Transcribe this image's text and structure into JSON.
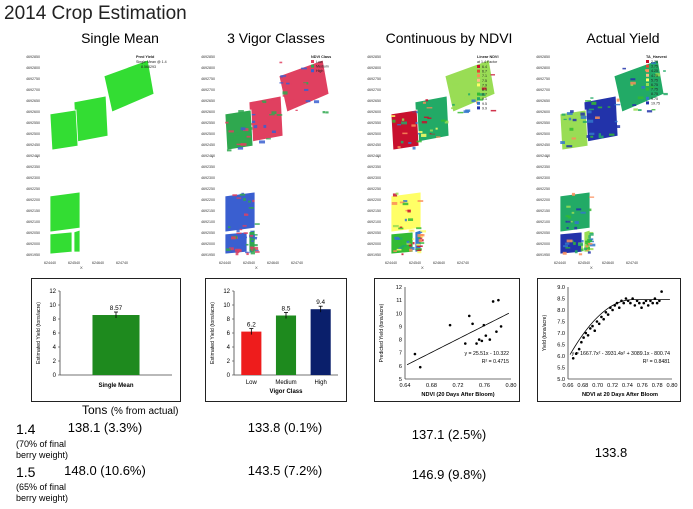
{
  "title": "2014 Crop Estimation",
  "columns": [
    {
      "header": "Single Mean"
    },
    {
      "header": "3 Vigor Classes"
    },
    {
      "header": "Continuous by NDVI"
    },
    {
      "header": "Actual Yield"
    }
  ],
  "maps": {
    "y_ticks": [
      "4692850",
      "4692800",
      "4692750",
      "4692700",
      "4692650",
      "4692600",
      "4692550",
      "4692500",
      "4692450",
      "4692400",
      "4692350",
      "4692300",
      "4692250",
      "4692200",
      "4692150",
      "4692100",
      "4692050",
      "4692000",
      "4691950"
    ],
    "x_ticks": [
      "624440",
      "624540",
      "624640",
      "624740"
    ],
    "x_label": "X",
    "y_label": "Y",
    "legends": [
      {
        "title": "Pred Yield",
        "subtitle": "Single Mean @ 1.4",
        "items": [
          {
            "label": "8.568293",
            "color": "#33dd33"
          }
        ]
      },
      {
        "title": "NDVI Class",
        "subtitle": "",
        "items": [
          {
            "label": "Low",
            "color": "#e04060"
          },
          {
            "label": "Medium",
            "color": "#2fa84f"
          },
          {
            "label": "High",
            "color": "#3a5fd0"
          }
        ]
      },
      {
        "title": "Linear NDVI",
        "subtitle": "at 1.4 Factor",
        "items": [
          {
            "label": "6.4",
            "color": "#c8102e"
          },
          {
            "label": "6.7",
            "color": "#e34a33"
          },
          {
            "label": "7.1",
            "color": "#fc8d59"
          },
          {
            "label": "7.5",
            "color": "#fdbb84"
          },
          {
            "label": "7.9",
            "color": "#ffff66"
          },
          {
            "label": "8.3",
            "color": "#99dd55"
          },
          {
            "label": "8.7",
            "color": "#33bb33"
          },
          {
            "label": "9.1",
            "color": "#22aa66"
          },
          {
            "label": "9.5",
            "color": "#3377cc"
          },
          {
            "label": "9.9",
            "color": "#2233aa"
          }
        ]
      },
      {
        "title": "TA_Harvest",
        "subtitle": "",
        "items": [
          {
            "label": "2.75",
            "color": "#c8102e"
          },
          {
            "label": "3.75",
            "color": "#e34a33"
          },
          {
            "label": "4.25",
            "color": "#fc8d59"
          },
          {
            "label": "4.75",
            "color": "#fdbb84"
          },
          {
            "label": "5.75",
            "color": "#ffff66"
          },
          {
            "label": "6.75",
            "color": "#99dd55"
          },
          {
            "label": "7.75",
            "color": "#33bb33"
          },
          {
            "label": "8.75",
            "color": "#22aa66"
          },
          {
            "label": "9.75",
            "color": "#3377cc"
          },
          {
            "label": "19.75",
            "color": "#2233aa"
          }
        ]
      }
    ]
  },
  "charts": [
    {
      "type": "bar",
      "categories": [
        "Single Mean"
      ],
      "values": [
        8.57
      ],
      "value_labels": [
        "8.57"
      ],
      "colors": [
        "#1e8a1e"
      ],
      "ylabel": "Estimated Yield (tons/acre)",
      "xlabel": "Single Mean",
      "yticks": [
        "0",
        "2",
        "4",
        "6",
        "8",
        "10",
        "12"
      ],
      "ylim": [
        0,
        12
      ]
    },
    {
      "type": "bar",
      "categories": [
        "Low",
        "Medium",
        "High"
      ],
      "values": [
        6.2,
        8.5,
        9.4
      ],
      "value_labels": [
        "6.2",
        "8.5",
        "9.4"
      ],
      "colors": [
        "#ee1c1c",
        "#1e8a1e",
        "#0a1f6b"
      ],
      "ylabel": "Estimated Yield (tons/acre)",
      "xlabel": "Vigor Class",
      "yticks": [
        "0",
        "2",
        "4",
        "6",
        "8",
        "10",
        "12"
      ],
      "ylim": [
        0,
        12
      ]
    },
    {
      "type": "scatter",
      "xlabel": "NDVI (20 Days After Bloom)",
      "ylabel": "Predicted Yield (tons/acre)",
      "xticks": [
        "0.64",
        "0.68",
        "0.72",
        "0.76",
        "0.80"
      ],
      "yticks": [
        "5",
        "6",
        "7",
        "8",
        "9",
        "10",
        "11",
        "12"
      ],
      "xlim": [
        0.64,
        0.8
      ],
      "ylim": [
        5,
        12
      ],
      "points": [
        [
          0.655,
          6.9
        ],
        [
          0.663,
          5.9
        ],
        [
          0.708,
          9.1
        ],
        [
          0.731,
          7.7
        ],
        [
          0.737,
          9.8
        ],
        [
          0.742,
          9.2
        ],
        [
          0.748,
          7.7
        ],
        [
          0.752,
          8.0
        ],
        [
          0.756,
          7.9
        ],
        [
          0.759,
          9.1
        ],
        [
          0.762,
          8.3
        ],
        [
          0.768,
          8.0
        ],
        [
          0.773,
          10.9
        ],
        [
          0.778,
          8.6
        ],
        [
          0.781,
          11.0
        ],
        [
          0.785,
          9.0
        ]
      ],
      "equation": "y = 25.51x - 10.322",
      "r2": "R² = 0.4715"
    },
    {
      "type": "scatter",
      "xlabel": "NDVI at 20 Days After Bloom",
      "ylabel": "Yield (tons/acre)",
      "xticks": [
        "0.66",
        "0.68",
        "0.70",
        "0.72",
        "0.74",
        "0.76",
        "0.78",
        "0.80"
      ],
      "yticks": [
        "5.0",
        "5.5",
        "6.0",
        "6.5",
        "7.0",
        "7.5",
        "8.0",
        "8.5",
        "9.0"
      ],
      "xlim": [
        0.66,
        0.8
      ],
      "ylim": [
        5.0,
        9.0
      ],
      "points": [
        [
          0.667,
          5.9
        ],
        [
          0.671,
          6.1
        ],
        [
          0.675,
          6.3
        ],
        [
          0.678,
          6.6
        ],
        [
          0.681,
          6.8
        ],
        [
          0.684,
          7.0
        ],
        [
          0.687,
          6.9
        ],
        [
          0.69,
          7.2
        ],
        [
          0.693,
          7.3
        ],
        [
          0.696,
          7.1
        ],
        [
          0.699,
          7.5
        ],
        [
          0.702,
          7.4
        ],
        [
          0.705,
          7.7
        ],
        [
          0.708,
          7.6
        ],
        [
          0.711,
          7.9
        ],
        [
          0.714,
          7.8
        ],
        [
          0.717,
          8.1
        ],
        [
          0.72,
          8.0
        ],
        [
          0.723,
          8.2
        ],
        [
          0.726,
          8.3
        ],
        [
          0.729,
          8.1
        ],
        [
          0.732,
          8.4
        ],
        [
          0.735,
          8.3
        ],
        [
          0.738,
          8.5
        ],
        [
          0.741,
          8.4
        ],
        [
          0.744,
          8.3
        ],
        [
          0.747,
          8.5
        ],
        [
          0.75,
          8.2
        ],
        [
          0.753,
          8.4
        ],
        [
          0.756,
          8.3
        ],
        [
          0.759,
          8.1
        ],
        [
          0.762,
          8.3
        ],
        [
          0.765,
          8.4
        ],
        [
          0.768,
          8.2
        ],
        [
          0.771,
          8.4
        ],
        [
          0.774,
          8.3
        ],
        [
          0.777,
          8.5
        ],
        [
          0.78,
          8.3
        ],
        [
          0.783,
          8.4
        ],
        [
          0.786,
          8.8
        ]
      ],
      "equation": "y = 1667.7x² - 3931.4x² + 3089.1x - 800.74",
      "r2": "R² = 0.8481"
    }
  ],
  "summary": {
    "tons_label": "Tons",
    "tons_sub": "(% from actual)",
    "rows": [
      {
        "factor": "1.4",
        "note_line1": "(70% of final",
        "note_line2": "berry weight)",
        "single": "138.1 (3.3%)",
        "vigor": "133.8 (0.1%)",
        "continuous": "137.1 (2.5%)"
      },
      {
        "factor": "1.5",
        "note_line1": "(65% of final",
        "note_line2": "berry weight)",
        "single": "148.0 (10.6%)",
        "vigor": "143.5 (7.2%)",
        "continuous": "146.9 (9.8%)"
      }
    ],
    "actual": "133.8"
  }
}
